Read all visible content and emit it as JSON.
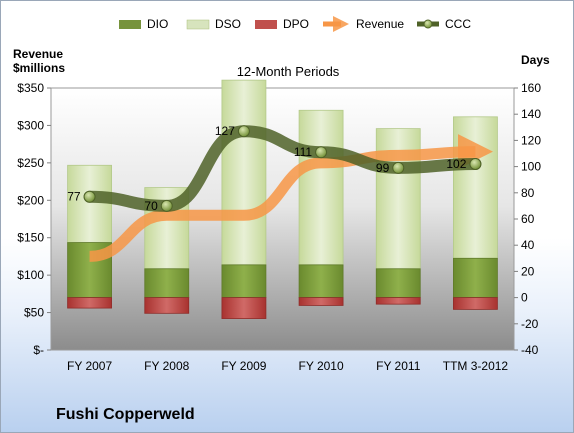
{
  "company": "Fushi Copperweld",
  "chart_data": {
    "type": "bar",
    "title": "12-Month Periods",
    "categories": [
      "FY 2007",
      "FY 2008",
      "FY 2009",
      "FY 2010",
      "FY 2011",
      "TTM 3-2012"
    ],
    "left_axis": {
      "label_line1": "Revenue",
      "label_line2": "$millions",
      "range": [
        0,
        350
      ],
      "ticks": [
        0,
        50,
        100,
        150,
        200,
        250,
        300,
        350
      ],
      "tick_labels": [
        "$-",
        "$50",
        "$100",
        "$150",
        "$200",
        "$250",
        "$300",
        "$350"
      ]
    },
    "right_axis": {
      "label": "Days",
      "range": [
        -40,
        160
      ],
      "ticks": [
        -40,
        -20,
        0,
        20,
        40,
        60,
        80,
        100,
        120,
        140,
        160
      ],
      "tick_labels": [
        "-40",
        "-20",
        "0",
        "20",
        "40",
        "60",
        "80",
        "100",
        "120",
        "140",
        "160"
      ]
    },
    "legend": [
      "DIO",
      "DSO",
      "DPO",
      "Revenue",
      "CCC"
    ],
    "legend_position": "top",
    "grid": false,
    "series": [
      {
        "name": "DIO",
        "axis": "right",
        "color": "#77933c",
        "values": [
          42,
          22,
          25,
          25,
          22,
          30
        ]
      },
      {
        "name": "DSO",
        "axis": "right",
        "color": "#d7e4bd",
        "values": [
          59,
          62,
          141,
          118,
          107,
          108
        ]
      },
      {
        "name": "DPO",
        "axis": "right",
        "color": "#c0504d",
        "values": [
          -8,
          -12,
          -16,
          -6,
          -5,
          -9
        ]
      },
      {
        "name": "Revenue",
        "axis": "left",
        "color": "#f79646",
        "values": [
          125,
          180,
          180,
          250,
          260,
          265
        ]
      },
      {
        "name": "CCC",
        "axis": "right",
        "color": "#4f6228",
        "values": [
          77,
          70,
          127,
          111,
          99,
          102
        ]
      }
    ],
    "data_labels": [
      "77",
      "70",
      "127",
      "111",
      "99",
      "102"
    ]
  }
}
